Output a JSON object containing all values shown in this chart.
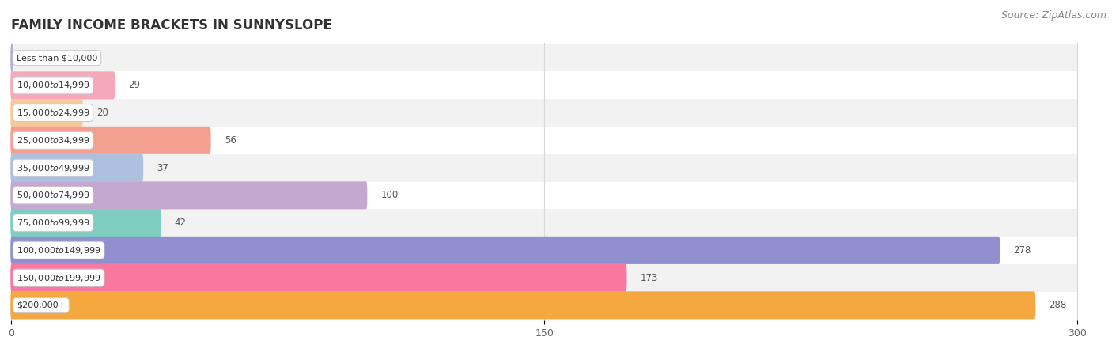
{
  "title": "FAMILY INCOME BRACKETS IN SUNNYSLOPE",
  "source": "Source: ZipAtlas.com",
  "categories": [
    "Less than $10,000",
    "$10,000 to $14,999",
    "$15,000 to $24,999",
    "$25,000 to $34,999",
    "$35,000 to $49,999",
    "$50,000 to $74,999",
    "$75,000 to $99,999",
    "$100,000 to $149,999",
    "$150,000 to $199,999",
    "$200,000+"
  ],
  "values": [
    0,
    29,
    20,
    56,
    37,
    100,
    42,
    278,
    173,
    288
  ],
  "bar_colors": [
    "#b8b0d8",
    "#f4a8b8",
    "#f5c99a",
    "#f4a090",
    "#adc0e0",
    "#c4a8d0",
    "#7ecdc0",
    "#9090d0",
    "#f878a0",
    "#f5a840"
  ],
  "xlim_max": 300,
  "xticks": [
    0,
    150,
    300
  ],
  "label_color": "#555555",
  "title_fontsize": 12,
  "source_fontsize": 9,
  "bar_height": 0.65,
  "row_colors": [
    "#f2f2f2",
    "#ffffff"
  ],
  "figsize": [
    14.06,
    4.5
  ],
  "dpi": 100
}
